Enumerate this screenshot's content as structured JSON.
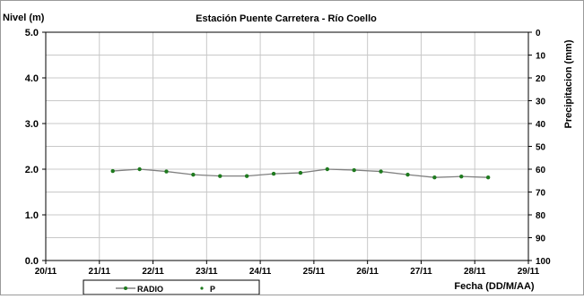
{
  "chart_data": {
    "type": "line",
    "title": "Estación Puente Carretera - Río Coello",
    "ylabel": "Nivel (m)",
    "y2label": "Precipitacion (mm)",
    "xlabel": "Fecha (DD/M/AA)",
    "xlim": [
      "20/11",
      "29/11"
    ],
    "ylim": [
      0,
      5
    ],
    "y2lim": [
      0,
      100
    ],
    "y2_inverted": true,
    "x_ticks": [
      "20/11",
      "21/11",
      "22/11",
      "23/11",
      "24/11",
      "25/11",
      "26/11",
      "27/11",
      "28/11",
      "29/11"
    ],
    "y_ticks": [
      "0.0",
      "1.0",
      "2.0",
      "3.0",
      "4.0",
      "5.0"
    ],
    "y2_ticks": [
      "0",
      "10",
      "20",
      "30",
      "40",
      "50",
      "60",
      "70",
      "80",
      "90",
      "100"
    ],
    "grid": true,
    "legend_position": "bottom",
    "series": [
      {
        "name": "RADIO",
        "color": "#808080",
        "marker_color": "#1e7a1e",
        "x": [
          21.25,
          21.75,
          22.25,
          22.75,
          23.25,
          23.75,
          24.25,
          24.75,
          25.25,
          25.75,
          26.25,
          26.75,
          27.25,
          27.75,
          28.25
        ],
        "values": [
          1.96,
          2.0,
          1.95,
          1.88,
          1.85,
          1.85,
          1.9,
          1.92,
          2.0,
          1.98,
          1.95,
          1.88,
          1.82,
          1.84,
          1.82
        ]
      },
      {
        "name": "P",
        "color": "#1e7a1e",
        "x": [],
        "values": []
      }
    ]
  }
}
